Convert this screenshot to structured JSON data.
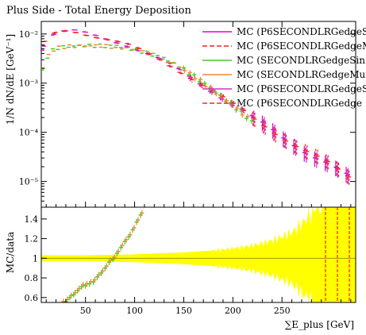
{
  "chart_data": {
    "type": "line",
    "title": "Plus Side - Total Energy Deposition",
    "xlabel": "∑E_plus [GeV]",
    "ylabel": "1/N dN/dE [GeV⁻¹]",
    "ratio_ylabel": "MC/data",
    "xlim": [
      5,
      325
    ],
    "ylim": [
      3e-06,
      0.018
    ],
    "yscale": "log",
    "ratio_ylim": [
      0.55,
      1.52
    ],
    "x_ticks": [
      "50",
      "100",
      "150",
      "200",
      "250"
    ],
    "x_tick_values": [
      50,
      100,
      150,
      200,
      250
    ],
    "y_ticks": [
      "10⁻⁵",
      "10⁻⁴",
      "10⁻³",
      "10⁻²"
    ],
    "y_tick_values": [
      1e-05,
      0.0001,
      0.001,
      0.01
    ],
    "ratio_ticks": [
      "0.6",
      "0.8",
      "1",
      "1.2",
      "1.4"
    ],
    "ratio_tick_values": [
      0.6,
      0.8,
      1.0,
      1.2,
      1.4
    ],
    "grid": false,
    "legend_position": "top-right",
    "series": [
      {
        "name": "MC (P6SECONDLRGedgeS",
        "color": "#dd00dd",
        "style": "solid",
        "group": "high"
      },
      {
        "name": "MC (P6SECONDLRGedgeM",
        "color": "#ee2222",
        "style": "dashed",
        "group": "high"
      },
      {
        "name": "MC (SECONDLRGedgeSin",
        "color": "#44cc22",
        "style": "solid",
        "group": "low"
      },
      {
        "name": "MC (SECONDLRGedgeMu",
        "color": "#ee8833",
        "style": "solid",
        "group": "low"
      },
      {
        "name": "MC (P6SECONDLRGedgeS",
        "color": "#cc33cc",
        "style": "solid",
        "group": "high"
      },
      {
        "name": "MC (P6SECONDLRGedge",
        "color": "#ff2222",
        "style": "dashed",
        "group": "high"
      }
    ],
    "curves": {
      "high": {
        "x": [
          5,
          10,
          15,
          20,
          25,
          30,
          40,
          50,
          60,
          70,
          80,
          90,
          100,
          110,
          120,
          130,
          140,
          150,
          160,
          170,
          180,
          190,
          200,
          210,
          220,
          230,
          240,
          250,
          260,
          270,
          280,
          290,
          300,
          310,
          320
        ],
        "y": [
          0.0045,
          0.0072,
          0.0093,
          0.0102,
          0.0108,
          0.0113,
          0.0112,
          0.0102,
          0.0092,
          0.0082,
          0.0072,
          0.0063,
          0.0052,
          0.0042,
          0.0034,
          0.0027,
          0.0021,
          0.0016,
          0.0012,
          0.0009,
          0.00068,
          0.0005,
          0.00037,
          0.00028,
          0.0002,
          0.00015,
          0.00011,
          8e-05,
          6e-05,
          4.5e-05,
          3.5e-05,
          2.8e-05,
          2.2e-05,
          1.6e-05,
          1.2e-05
        ]
      },
      "low": {
        "x": [
          5,
          10,
          15,
          20,
          25,
          30,
          40,
          50,
          60,
          70,
          80,
          90,
          100,
          110,
          120,
          130,
          140,
          150,
          160,
          170,
          180,
          190,
          200,
          210,
          220
        ],
        "y": [
          0.0015,
          0.0032,
          0.0044,
          0.0051,
          0.0054,
          0.0055,
          0.0057,
          0.0058,
          0.0058,
          0.0057,
          0.0055,
          0.0052,
          0.0048,
          0.0043,
          0.0037,
          0.0031,
          0.0025,
          0.0019,
          0.0014,
          0.001,
          0.00072,
          0.0005,
          0.00035,
          0.00024,
          0.00016
        ]
      }
    },
    "ratio": {
      "x": [
        18,
        22,
        26,
        30,
        34,
        38,
        42,
        46,
        50,
        54,
        58,
        62,
        66,
        70,
        74,
        78,
        82,
        86,
        90,
        94,
        98,
        102,
        106
      ],
      "y": [
        0.53,
        0.53,
        0.55,
        0.57,
        0.61,
        0.64,
        0.68,
        0.72,
        0.73,
        0.75,
        0.77,
        0.82,
        0.86,
        0.91,
        0.97,
        1.0,
        1.06,
        1.12,
        1.18,
        1.23,
        1.3,
        1.38,
        1.45
      ]
    },
    "uncertainty_band": {
      "x": [
        5,
        50,
        100,
        150,
        180,
        200,
        220,
        240,
        260,
        275,
        290,
        305,
        320
      ],
      "half_width": [
        0.03,
        0.03,
        0.04,
        0.06,
        0.08,
        0.1,
        0.13,
        0.18,
        0.26,
        0.4,
        0.6,
        0.8,
        0.9
      ]
    }
  }
}
